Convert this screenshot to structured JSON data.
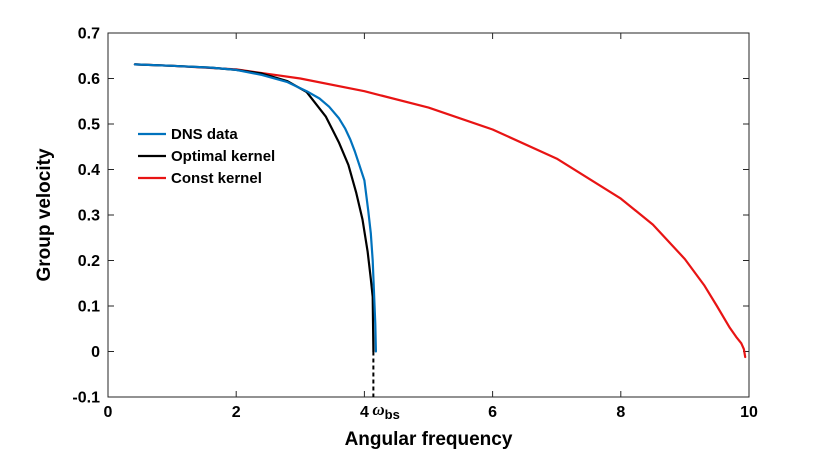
{
  "chart_data": {
    "type": "line",
    "title": "",
    "xlabel": "Angular frequency",
    "ylabel": "Group velocity",
    "xlim": [
      0,
      10
    ],
    "ylim": [
      -0.1,
      0.7
    ],
    "xticks": [
      0,
      2,
      4,
      6,
      8,
      10
    ],
    "xtick_labels": [
      "0",
      "2",
      "4",
      "6",
      "8",
      "10"
    ],
    "yticks": [
      -0.1,
      0,
      0.1,
      0.2,
      0.3,
      0.4,
      0.5,
      0.6,
      0.7
    ],
    "ytick_labels": [
      "-0.1",
      "0",
      "0.1",
      "0.2",
      "0.3",
      "0.4",
      "0.5",
      "0.6",
      "0.7"
    ],
    "grid": false,
    "legend_position": "middle-left",
    "series": [
      {
        "name": "DNS data",
        "color": "#0072BD",
        "x": [
          0.42,
          1.0,
          1.6,
          2.0,
          2.4,
          2.8,
          3.1,
          3.3,
          3.45,
          3.6,
          3.7,
          3.78,
          3.85,
          3.92,
          4.0,
          4.06,
          4.1,
          4.13,
          4.15,
          4.17,
          4.18
        ],
        "y": [
          0.631,
          0.628,
          0.624,
          0.619,
          0.608,
          0.592,
          0.572,
          0.556,
          0.538,
          0.513,
          0.49,
          0.466,
          0.44,
          0.41,
          0.376,
          0.31,
          0.26,
          0.2,
          0.13,
          0.06,
          0.0
        ]
      },
      {
        "name": "Optimal kernel",
        "color": "#000000",
        "x": [
          0.42,
          1.0,
          1.6,
          2.0,
          2.4,
          2.8,
          3.1,
          3.4,
          3.6,
          3.75,
          3.87,
          3.97,
          4.05,
          4.1,
          4.13,
          4.14
        ],
        "y": [
          0.631,
          0.628,
          0.624,
          0.619,
          0.611,
          0.594,
          0.57,
          0.516,
          0.46,
          0.41,
          0.35,
          0.29,
          0.22,
          0.16,
          0.12,
          0.0
        ]
      },
      {
        "name": "Const kernel",
        "color": "#E81414",
        "x": [
          0.42,
          1.0,
          2.0,
          3.0,
          4.0,
          5.0,
          6.0,
          7.0,
          8.0,
          8.5,
          9.0,
          9.3,
          9.5,
          9.7,
          9.8,
          9.88,
          9.92,
          9.94
        ],
        "y": [
          0.631,
          0.628,
          0.62,
          0.6,
          0.572,
          0.536,
          0.488,
          0.424,
          0.336,
          0.279,
          0.203,
          0.146,
          0.1,
          0.052,
          0.032,
          0.018,
          0.005,
          -0.012
        ]
      }
    ],
    "annotations": [
      {
        "text": "ω",
        "subscript": "bs",
        "x": 4.14,
        "line_from_y": 0.0,
        "line_to_y": -0.1,
        "line_style": "dashed"
      }
    ]
  }
}
